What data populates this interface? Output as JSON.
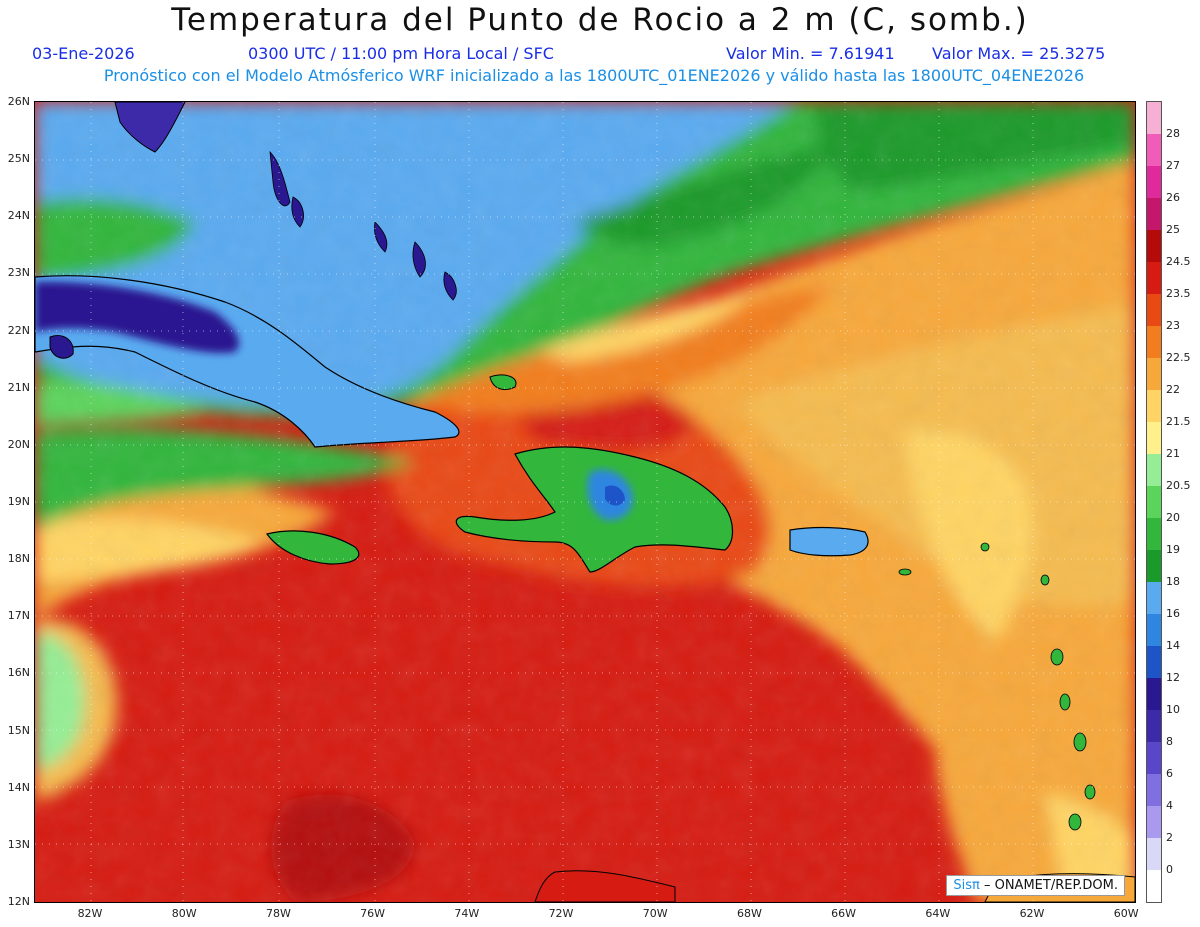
{
  "header": {
    "title": "Temperatura del Punto de Rocio a 2 m (C, somb.)",
    "date": "03-Ene-2026",
    "time": "0300 UTC / 11:00 pm Hora Local / SFC",
    "min_value": "Valor Min. = 7.61941",
    "max_value": "Valor Max. = 25.3275",
    "model_info": "Pronóstico con el Modelo Atmósferico WRF inicializado a las 1800UTC_01ENE2026 y válido hasta las  1800UTC_04ENE2026"
  },
  "map": {
    "lat_labels": [
      "26N",
      "25N",
      "24N",
      "23N",
      "22N",
      "21N",
      "20N",
      "19N",
      "18N",
      "17N",
      "16N",
      "15N",
      "14N",
      "13N",
      "12N"
    ],
    "lon_labels": [
      "82W",
      "80W",
      "78W",
      "76W",
      "74W",
      "72W",
      "70W",
      "68W",
      "66W",
      "64W",
      "62W",
      "60W"
    ],
    "credit_logo": "Sisπ",
    "credit_text": "– ONAMET/REP.DOM."
  },
  "colorbar": {
    "levels": [
      "0",
      "2",
      "4",
      "6",
      "8",
      "10",
      "12",
      "14",
      "16",
      "18",
      "19",
      "20",
      "20.5",
      "21",
      "21.5",
      "22",
      "22.5",
      "23",
      "23.5",
      "24.5",
      "25",
      "26",
      "27",
      "28"
    ],
    "colors": [
      "#ffffff",
      "#d9d9f7",
      "#a99af0",
      "#7f6fe0",
      "#5a46c8",
      "#3c2aa8",
      "#2a1890",
      "#1d55c8",
      "#2f86e0",
      "#5aaaf0",
      "#1a9a2a",
      "#33b63c",
      "#5bd45b",
      "#95ee95",
      "#fff08c",
      "#ffd464",
      "#f7a83a",
      "#f27d1e",
      "#e94a14",
      "#d61c12",
      "#b40a0a",
      "#c4166a",
      "#e02a9c",
      "#f05cb8",
      "#f5b0d4"
    ]
  }
}
